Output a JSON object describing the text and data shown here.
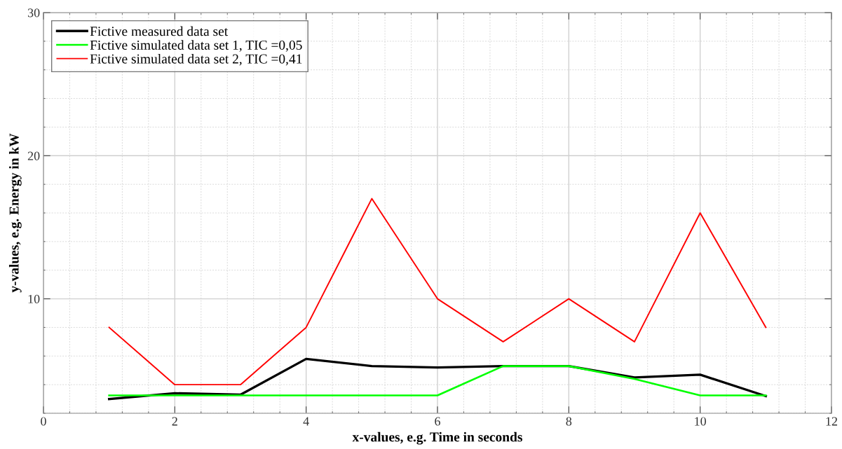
{
  "chart_data": {
    "type": "line",
    "xlabel": "x-values, e.g. Time in seconds",
    "ylabel": "y-values, e.g. Energy in kW",
    "x": [
      1,
      2,
      3,
      4,
      5,
      6,
      7,
      8,
      9,
      10,
      11
    ],
    "series": [
      {
        "name": "Fictive measured data set",
        "color": "#000000",
        "values": [
          3.0,
          3.4,
          3.3,
          5.8,
          5.3,
          5.2,
          5.3,
          5.3,
          4.5,
          4.7,
          3.2
        ]
      },
      {
        "name": "Fictive simulated data set 1, TIC =0,05",
        "color": "#00ff00",
        "values": [
          3.25,
          3.25,
          3.25,
          3.25,
          3.25,
          3.25,
          5.3,
          5.3,
          4.4,
          3.25,
          3.25
        ]
      },
      {
        "name": "Fictive simulated data set 2, TIC =0,41",
        "color": "#ff0000",
        "values": [
          8,
          4,
          4,
          8,
          17,
          10,
          7,
          10,
          7,
          16,
          8
        ]
      }
    ],
    "xlim": [
      0,
      12
    ],
    "xticks": [
      0,
      2,
      4,
      6,
      8,
      10,
      12
    ],
    "ylim": [
      2,
      30
    ],
    "yticks": [
      10,
      20,
      30
    ],
    "grid": true,
    "legend": "top left",
    "marker": "none",
    "line_style": "solid"
  }
}
